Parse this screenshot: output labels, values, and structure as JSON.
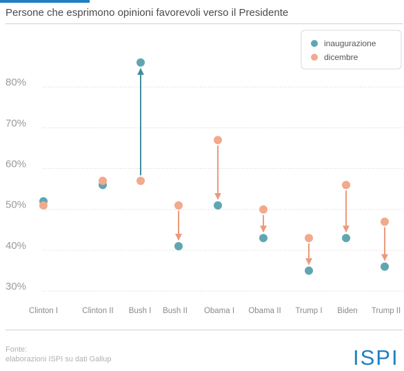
{
  "subtitle": "Persone che esprimono opinioni favorevoli verso il Presidente",
  "footer": {
    "source_label": "Fonte:",
    "source_text": "elaborazioni ISPI su dati Gallup"
  },
  "logo_text": "ISPI",
  "colors": {
    "inauguration": "#5fa6b2",
    "december": "#f2a98c",
    "arrow_up": "#3c8ea0",
    "arrow_down": "#ec9a7c",
    "grid": "#d6d6d6",
    "brand_blue": "#1f7fc2"
  },
  "chart_data": {
    "type": "scatter",
    "title": "",
    "xlabel": "",
    "ylabel": "",
    "categories": [
      "Clinton I",
      "Clinton II",
      "Bush I",
      "Bush II",
      "Obama I",
      "Obama II",
      "Trump I",
      "Biden",
      "Trump II"
    ],
    "series": [
      {
        "name": "inaugurazione",
        "values": [
          52,
          56,
          86,
          41,
          51,
          43,
          35,
          43,
          36
        ]
      },
      {
        "name": "dicembre",
        "values": [
          51,
          57,
          57,
          51,
          67,
          50,
          43,
          56,
          47
        ]
      }
    ],
    "yticks": [
      30,
      40,
      50,
      60,
      70,
      80
    ],
    "ytick_labels": [
      "30%",
      "40%",
      "50%",
      "60%",
      "70%",
      "80%"
    ],
    "ylim": [
      28,
      91
    ],
    "grid": "horizontal dotted",
    "legend": "top-right"
  }
}
